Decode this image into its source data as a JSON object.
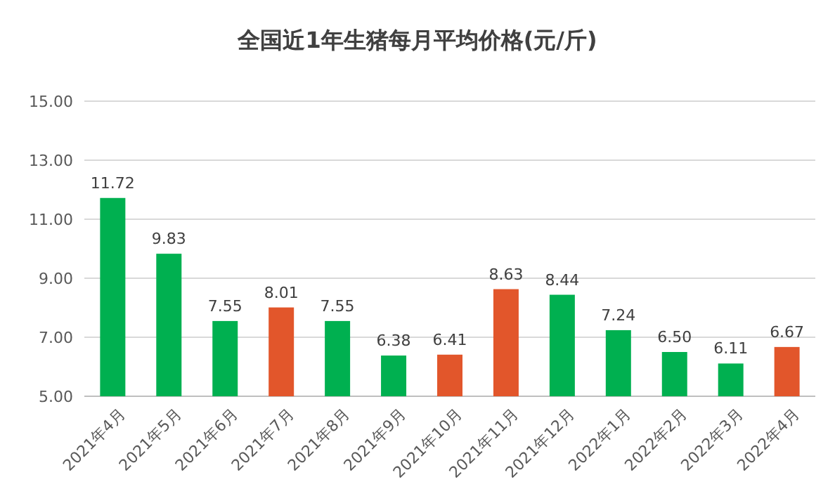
{
  "chart_data": {
    "type": "bar",
    "title": "全国近1年生猪每月平均价格(元/斤)",
    "categories": [
      "2021年4月",
      "2021年5月",
      "2021年6月",
      "2021年7月",
      "2021年8月",
      "2021年9月",
      "2021年10月",
      "2021年11月",
      "2021年12月",
      "2022年1月",
      "2022年2月",
      "2022年3月",
      "2022年4月"
    ],
    "values": [
      11.72,
      9.83,
      7.55,
      8.01,
      7.55,
      6.38,
      6.41,
      8.63,
      8.44,
      7.24,
      6.5,
      6.11,
      6.67
    ],
    "value_labels": [
      "11.72",
      "9.83",
      "7.55",
      "8.01",
      "7.55",
      "6.38",
      "6.41",
      "8.63",
      "8.44",
      "7.24",
      "6.50",
      "6.11",
      "6.67"
    ],
    "colors": [
      "#00b050",
      "#00b050",
      "#00b050",
      "#e2562b",
      "#00b050",
      "#00b050",
      "#e2562b",
      "#e2562b",
      "#00b050",
      "#00b050",
      "#00b050",
      "#00b050",
      "#e2562b"
    ],
    "ylim": [
      5,
      15
    ],
    "yticks": [
      {
        "value": 5,
        "label": "5.00"
      },
      {
        "value": 7,
        "label": "7.00"
      },
      {
        "value": 9,
        "label": "9.00"
      },
      {
        "value": 11,
        "label": "11.00"
      },
      {
        "value": 13,
        "label": "13.00"
      },
      {
        "value": 15,
        "label": "15.00"
      }
    ],
    "grid": "y"
  }
}
